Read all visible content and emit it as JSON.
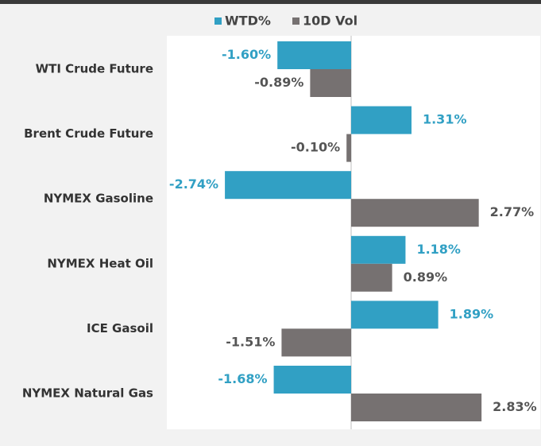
{
  "chart_data": {
    "type": "bar",
    "orientation": "horizontal",
    "categories": [
      "WTI Crude Future",
      "Brent Crude Future",
      "NYMEX Gasoline",
      "NYMEX Heat Oil",
      "ICE Gasoil",
      "NYMEX Natural Gas"
    ],
    "series": [
      {
        "name": "WTD%",
        "color": "#31a0c4",
        "values": [
          -1.6,
          1.31,
          -2.74,
          1.18,
          1.89,
          -1.68
        ],
        "value_labels": [
          "-1.60%",
          "1.31%",
          "-2.74%",
          "1.18%",
          "1.89%",
          "-1.68%"
        ]
      },
      {
        "name": "10D Vol",
        "color": "#767171",
        "values": [
          -0.89,
          -0.1,
          2.77,
          0.89,
          -1.51,
          2.83
        ],
        "value_labels": [
          "-0.89%",
          "-0.10%",
          "2.77%",
          "0.89%",
          "-1.51%",
          "2.83%"
        ]
      }
    ],
    "xlim": [
      -4,
      4
    ],
    "legend": "top"
  }
}
